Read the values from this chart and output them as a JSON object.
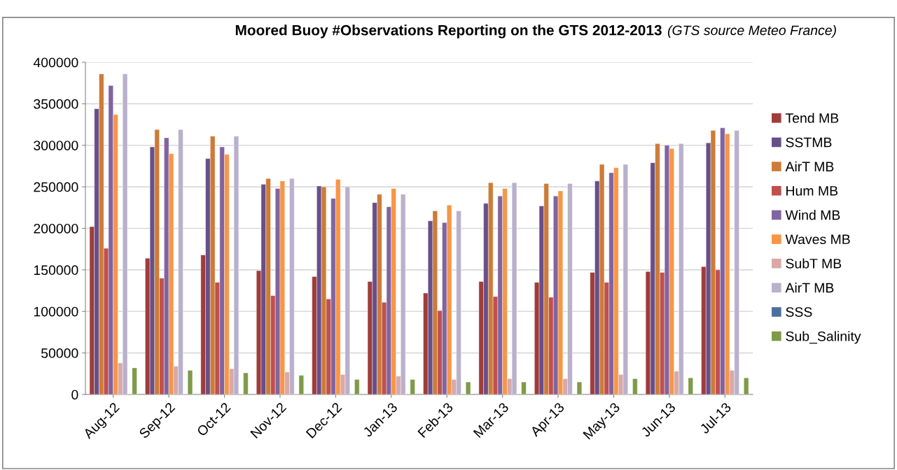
{
  "chart_data": {
    "type": "bar",
    "title": "Moored Buoy #Observations Reporting on the GTS 2012-2013",
    "subtitle": "(GTS source Meteo France)",
    "categories": [
      "Aug-12",
      "Sep-12",
      "Oct-12",
      "Nov-12",
      "Dec-12",
      "Jan-13",
      "Feb-13",
      "Mar-13",
      "Apr-13",
      "May-13",
      "Jun-13",
      "Jul-13"
    ],
    "series": [
      {
        "name": "Tend MB",
        "color": "#a03c3a",
        "values": [
          202000,
          164000,
          168000,
          149000,
          142000,
          136000,
          122000,
          136000,
          135000,
          147000,
          148000,
          154000
        ]
      },
      {
        "name": "SSTMB",
        "color": "#674f8a",
        "values": [
          344000,
          298000,
          284000,
          253000,
          251000,
          231000,
          209000,
          230000,
          227000,
          257000,
          279000,
          303000
        ]
      },
      {
        "name": "AirT MB",
        "color": "#cd7b38",
        "values": [
          386000,
          319000,
          311000,
          260000,
          250000,
          241000,
          221000,
          255000,
          254000,
          277000,
          302000,
          318000
        ]
      },
      {
        "name": "Hum MB",
        "color": "#c0504d",
        "values": [
          176000,
          140000,
          135000,
          119000,
          115000,
          111000,
          101000,
          118000,
          117000,
          135000,
          147000,
          150000
        ]
      },
      {
        "name": "Wind MB",
        "color": "#8064a2",
        "values": [
          372000,
          309000,
          298000,
          248000,
          236000,
          226000,
          207000,
          239000,
          239000,
          267000,
          300000,
          321000
        ]
      },
      {
        "name": "Waves MB",
        "color": "#f79646",
        "values": [
          337000,
          290000,
          289000,
          257000,
          259000,
          248000,
          228000,
          248000,
          245000,
          273000,
          296000,
          314000
        ]
      },
      {
        "name": "SubT MB",
        "color": "#d9a8a7",
        "values": [
          38000,
          34000,
          31000,
          27000,
          24000,
          22000,
          18000,
          19000,
          19000,
          24000,
          28000,
          29000
        ]
      },
      {
        "name": "AirT MB",
        "color": "#b9b0cc",
        "values": [
          386000,
          319000,
          311000,
          260000,
          250000,
          241000,
          221000,
          255000,
          254000,
          277000,
          302000,
          318000
        ]
      },
      {
        "name": "SSS",
        "color": "#4a70a0",
        "values": [
          null,
          null,
          null,
          null,
          null,
          null,
          null,
          null,
          null,
          null,
          null,
          null
        ]
      },
      {
        "name": "Sub_Salinity",
        "color": "#7f9a48",
        "values": [
          32000,
          29000,
          26000,
          23000,
          18000,
          18000,
          15000,
          15000,
          15000,
          19000,
          20000,
          20000
        ]
      }
    ],
    "ylim": [
      0,
      400000
    ],
    "yticks": [
      0,
      50000,
      100000,
      150000,
      200000,
      250000,
      300000,
      350000,
      400000
    ],
    "grid": "y",
    "legend": "right"
  }
}
